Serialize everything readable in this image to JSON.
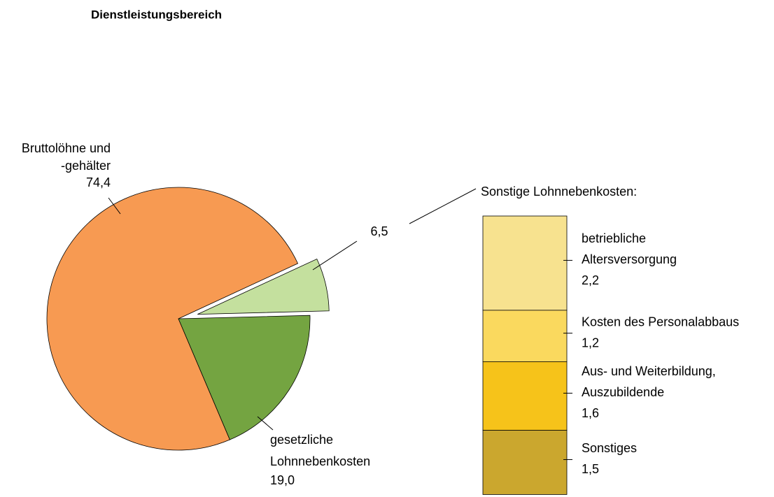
{
  "chart_data": [
    {
      "type": "pie",
      "title": "Dienstleistungsbereich",
      "categories": [
        [
          "Bruttolöhne und",
          "-gehälter"
        ],
        null,
        [
          "gesetzliche",
          "Lohnnebenkosten"
        ]
      ],
      "values": [
        74.4,
        6.5,
        19.0
      ],
      "value_labels": [
        "74,4",
        "6,5",
        "19,0"
      ],
      "colors": [
        "#f79a52",
        "#c4e09e",
        "#74a441"
      ],
      "explode": [
        false,
        true,
        false
      ]
    },
    {
      "type": "stacked_bar",
      "title": "Sonstige Lohnnebenkosten:",
      "categories": [
        [
          "betriebliche",
          "Altersversorgung"
        ],
        [
          "Kosten des Personalabbaus"
        ],
        [
          "Aus- und Weiterbildung,",
          "Auszubildende"
        ],
        [
          "Sonstiges"
        ]
      ],
      "values": [
        2.2,
        1.2,
        1.6,
        1.5
      ],
      "value_labels": [
        "2,2",
        "1,2",
        "1,6",
        "1,5"
      ],
      "colors": [
        "#f7e28f",
        "#fad95e",
        "#f6c31a",
        "#cba72e"
      ]
    }
  ]
}
